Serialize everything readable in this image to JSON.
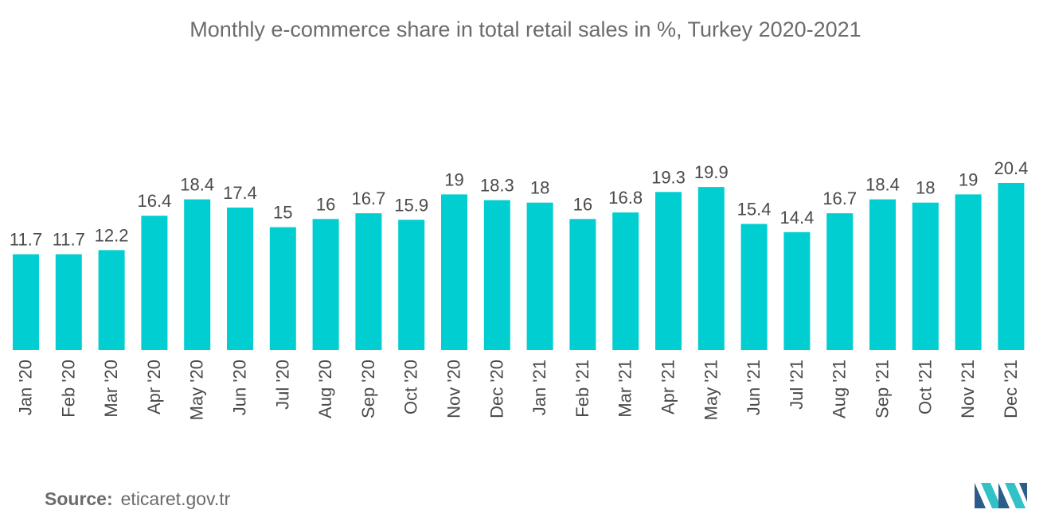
{
  "chart_data": {
    "type": "bar",
    "title": "Monthly e-commerce share in total retail sales in %, Turkey 2020-2021",
    "categories": [
      "Jan '20",
      "Feb '20",
      "Mar '20",
      "Apr '20",
      "May '20",
      "Jun '20",
      "Jul '20",
      "Aug '20",
      "Sep '20",
      "Oct '20",
      "Nov '20",
      "Dec '20",
      "Jan '21",
      "Feb '21",
      "Mar '21",
      "Apr '21",
      "May '21",
      "Jun '21",
      "Jul '21",
      "Aug '21",
      "Sep '21",
      "Oct '21",
      "Nov '21",
      "Dec '21"
    ],
    "values": [
      11.7,
      11.7,
      12.2,
      16.4,
      18.4,
      17.4,
      15,
      16,
      16.7,
      15.9,
      19,
      18.3,
      18,
      16,
      16.8,
      19.3,
      19.9,
      15.4,
      14.4,
      16.7,
      18.4,
      18,
      19,
      20.4
    ],
    "value_labels": [
      "11.7",
      "11.7",
      "12.2",
      "16.4",
      "18.4",
      "17.4",
      "15",
      "16",
      "16.7",
      "15.9",
      "19",
      "18.3",
      "18",
      "16",
      "16.8",
      "19.3",
      "19.9",
      "15.4",
      "14.4",
      "16.7",
      "18.4",
      "18",
      "19",
      "20.4"
    ],
    "xlabel": "",
    "ylabel": "",
    "ylim": [
      0,
      20.4
    ],
    "grid": false,
    "bar_color": "#00CED1"
  },
  "source": {
    "label": "Source:",
    "text": "eticaret.gov.tr"
  },
  "logo": {
    "icon": "mordor-logo-icon",
    "colors": [
      "#2B5C8A",
      "#33C1C8"
    ]
  }
}
